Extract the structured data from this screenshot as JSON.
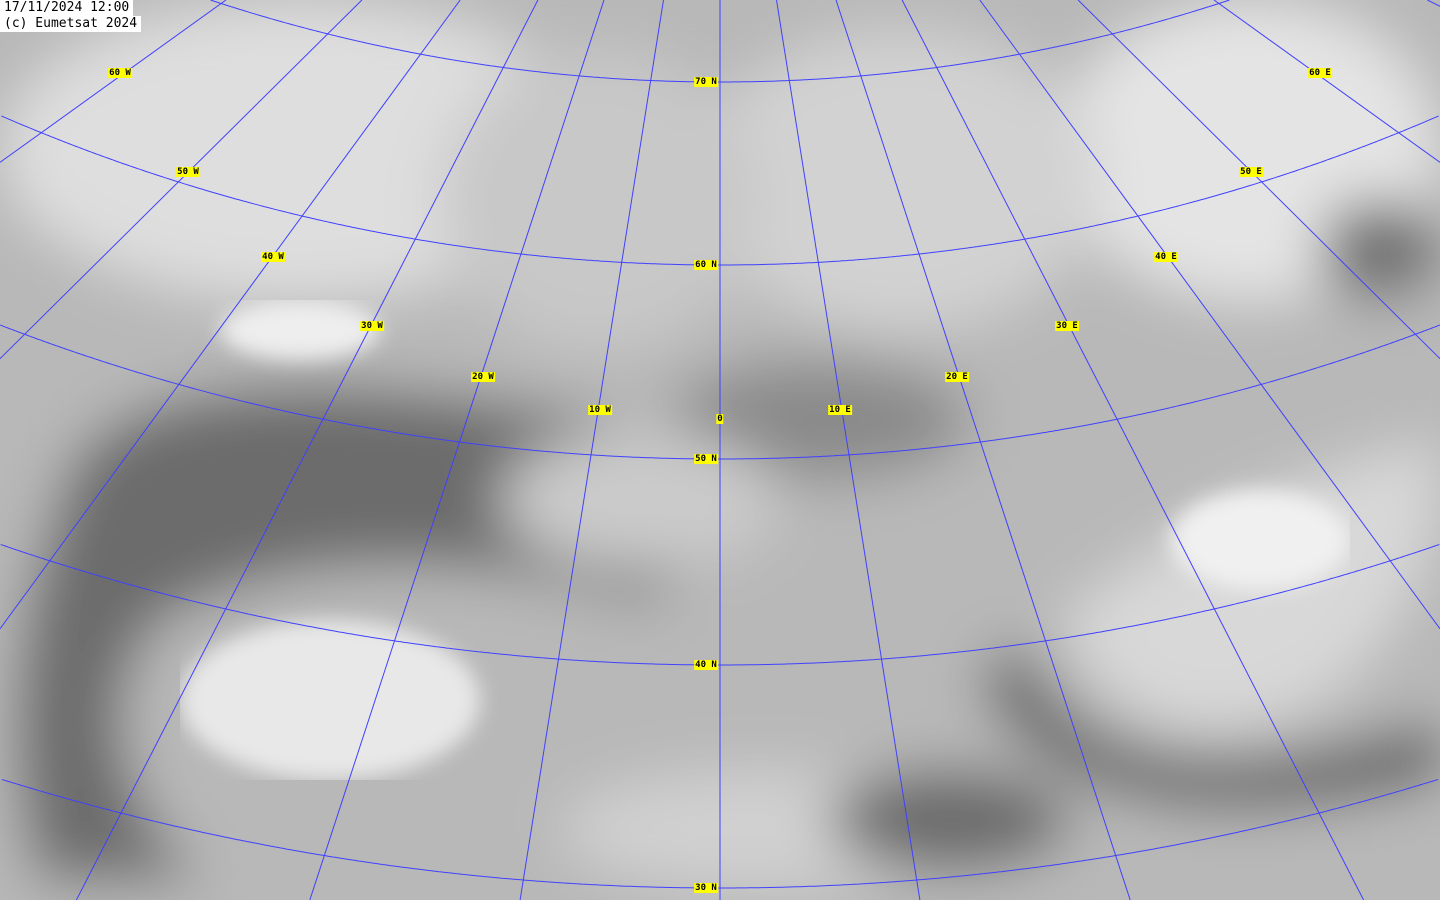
{
  "header": {
    "timestamp": "17/11/2024 12:00",
    "copyright": "(c) Eumetsat 2024"
  },
  "map": {
    "type": "satellite water-vapour image",
    "projection_grid_color": "#4040ff",
    "latitude_labels": [
      "70 N",
      "60 N",
      "50 N",
      "40 N",
      "30 N"
    ],
    "longitude_labels": [
      "60 W",
      "50 W",
      "40 W",
      "30 W",
      "20 W",
      "10 W",
      "0",
      "10 E",
      "20 E",
      "30 E",
      "40 E",
      "50 E",
      "60 E"
    ],
    "label_color": "#ffff00"
  }
}
